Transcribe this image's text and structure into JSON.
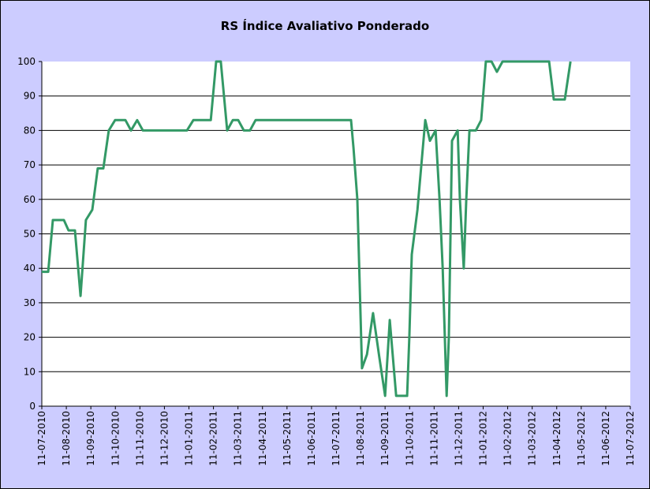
{
  "chart_data": {
    "type": "line",
    "title": "RS Índice Avaliativo Ponderado",
    "xlabel": "",
    "ylabel": "",
    "ylim": [
      0,
      100
    ],
    "yticks": [
      "0",
      "10",
      "20",
      "30",
      "40",
      "50",
      "60",
      "70",
      "80",
      "90",
      "100"
    ],
    "grid": true,
    "x_unit": "months since 11-07-2010",
    "xlim": [
      0,
      24
    ],
    "xtick_labels": [
      "11-07-2010",
      "11-08-2010",
      "11-09-2010",
      "11-10-2010",
      "11-11-2010",
      "11-12-2010",
      "11-01-2011",
      "11-02-2011",
      "11-03-2011",
      "11-04-2011",
      "11-05-2011",
      "11-06-2011",
      "11-07-2011",
      "11-08-2011",
      "11-09-2011",
      "11-10-2011",
      "11-11-2011",
      "11-12-2011",
      "11-01-2012",
      "11-02-2012",
      "11-03-2012",
      "11-04-2012",
      "11-05-2012",
      "11-06-2012",
      "11-07-2012"
    ],
    "series": [
      {
        "name": "RS Índice Avaliativo Ponderado",
        "color": "#339966",
        "x": [
          0,
          0.26,
          0.45,
          0.9,
          1.09,
          1.35,
          1.58,
          1.8,
          2.06,
          2.28,
          2.51,
          2.73,
          2.99,
          3.41,
          3.64,
          3.89,
          4.12,
          5.92,
          6.18,
          6.89,
          7.11,
          7.3,
          7.56,
          7.79,
          8.01,
          8.24,
          8.49,
          8.72,
          12.61,
          12.71,
          12.87,
          13.06,
          13.26,
          13.51,
          13.77,
          14.0,
          14.19,
          14.45,
          14.9,
          14.99,
          15.09,
          15.32,
          15.64,
          15.83,
          16.06,
          16.22,
          16.35,
          16.51,
          16.6,
          16.73,
          16.96,
          17.05,
          17.21,
          17.31,
          17.44,
          17.7,
          17.92,
          18.11,
          18.34,
          18.56,
          18.79,
          20.69,
          20.88,
          21.33,
          21.56
        ],
        "y": [
          39,
          39,
          54,
          54,
          51,
          51,
          32,
          54,
          57,
          69,
          69,
          80,
          83,
          83,
          80,
          83,
          80,
          80,
          83,
          83,
          100,
          100,
          80,
          83,
          83,
          80,
          80,
          83,
          83,
          75,
          60,
          11,
          15,
          27,
          14,
          3,
          25,
          3,
          3,
          20,
          44,
          57,
          83,
          77,
          80,
          60,
          40,
          3,
          20,
          77,
          80,
          60,
          40,
          60,
          80,
          80,
          83,
          100,
          100,
          97,
          100,
          100,
          89,
          89,
          100
        ]
      }
    ]
  }
}
